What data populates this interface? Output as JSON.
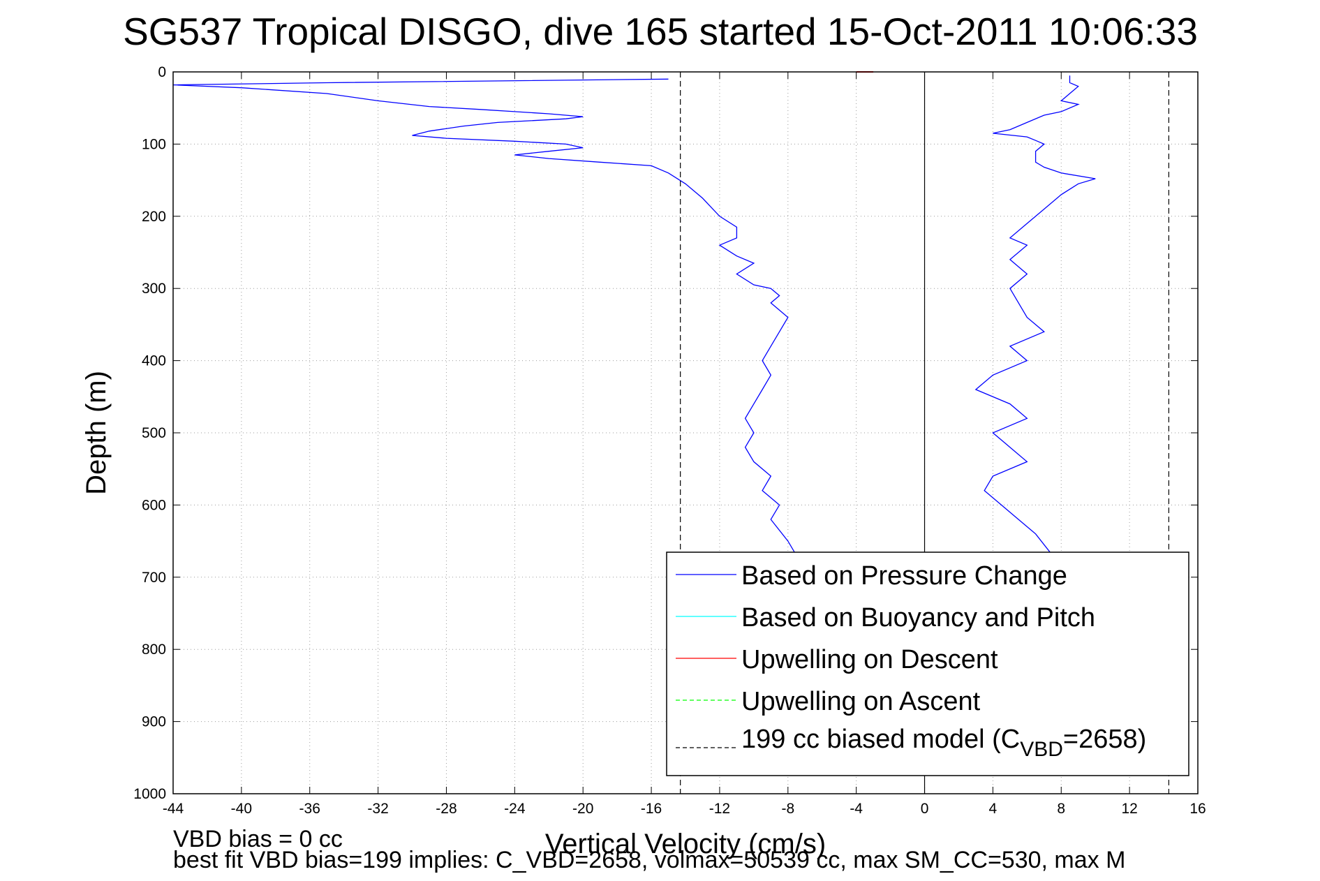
{
  "chart_data": {
    "type": "line",
    "title": "SG537 Tropical DISGO, dive 165 started 15-Oct-2011 10:06:33",
    "xlabel": "Vertical Velocity (cm/s)",
    "ylabel": "Depth (m)",
    "xlim": [
      -44,
      16
    ],
    "ylim": [
      0,
      1000
    ],
    "y_reversed": true,
    "grid": true,
    "xticks": [
      "-44",
      "-40",
      "-36",
      "-32",
      "-28",
      "-24",
      "-20",
      "-16",
      "-12",
      "-8",
      "-4",
      "0",
      "4",
      "8",
      "12",
      "16"
    ],
    "yticks": [
      "0",
      "100",
      "200",
      "300",
      "400",
      "500",
      "600",
      "700",
      "800",
      "900",
      "1000"
    ],
    "legend_position": "bottom-right",
    "legend": [
      {
        "label": "Based on Pressure Change",
        "color": "#0000ff",
        "style": "solid"
      },
      {
        "label": "Based on Buoyancy and Pitch",
        "color": "#00ffff",
        "style": "solid"
      },
      {
        "label": "Upwelling on Descent",
        "color": "#ff0000",
        "style": "solid"
      },
      {
        "label": "Upwelling on Ascent",
        "color": "#00ff00",
        "style": "dashed"
      },
      {
        "label_prefix": "199 cc biased model (C",
        "label_sub": "VBD",
        "label_suffix": "=2658)",
        "color": "#000000",
        "style": "dashed"
      }
    ],
    "series": [
      {
        "name": "Based on Pressure Change",
        "color": "#0000ff",
        "segments": [
          {
            "part": "descent",
            "x": [
              -15,
              -35,
              -44,
              -40,
              -35,
              -32,
              -29,
              -26,
              -24,
              -22,
              -20,
              -21,
              -25,
              -27,
              -29,
              -30,
              -28,
              -24,
              -21,
              -20,
              -22,
              -24,
              -22,
              -19,
              -16,
              -15,
              -14,
              -13,
              -12,
              -11,
              -11,
              -12,
              -11,
              -10,
              -11,
              -10,
              -9,
              -8.5,
              -9,
              -8,
              -8.5,
              -9,
              -9.5,
              -9,
              -9.5,
              -10,
              -10.5,
              -10,
              -10.5,
              -10,
              -9,
              -9.5,
              -8.5,
              -9,
              -8,
              -7.5
            ],
            "y": [
              10,
              15,
              18,
              22,
              30,
              40,
              48,
              52,
              55,
              58,
              62,
              65,
              70,
              75,
              82,
              88,
              92,
              96,
              100,
              105,
              110,
              115,
              120,
              125,
              130,
              140,
              155,
              175,
              200,
              215,
              230,
              240,
              255,
              265,
              280,
              295,
              300,
              310,
              320,
              340,
              360,
              380,
              400,
              420,
              440,
              460,
              480,
              500,
              520,
              540,
              560,
              580,
              600,
              620,
              650,
              670
            ]
          },
          {
            "part": "ascent",
            "x": [
              7.5,
              6.5,
              5.5,
              4.5,
              3.5,
              4,
              6,
              5,
              4,
              6,
              5,
              3,
              4,
              6,
              5,
              7,
              6,
              5,
              6,
              5,
              6,
              5,
              6,
              7,
              8,
              9,
              10,
              8,
              7,
              6.5,
              6.5,
              7,
              6.5,
              6,
              4,
              5,
              6,
              7,
              8,
              9,
              8,
              8.5,
              9,
              8.5,
              8.5,
              8.5
            ],
            "y": [
              670,
              640,
              620,
              600,
              580,
              560,
              540,
              520,
              500,
              480,
              460,
              440,
              420,
              400,
              380,
              360,
              340,
              300,
              280,
              260,
              240,
              230,
              210,
              190,
              170,
              155,
              148,
              140,
              132,
              125,
              110,
              100,
              95,
              90,
              85,
              80,
              70,
              60,
              55,
              45,
              40,
              30,
              20,
              15,
              10,
              5
            ]
          }
        ]
      },
      {
        "name": "Upwelling on Descent",
        "color": "#ff0000",
        "x": [
          -4,
          -3
        ],
        "y": [
          0,
          0
        ]
      },
      {
        "name": "199 cc biased model (C_VBD=2658)",
        "color": "#000000",
        "style": "dashed",
        "vertical_lines_x": [
          -14.3,
          14.3
        ]
      }
    ],
    "zero_line_x": 0
  },
  "notes": {
    "vbd_bias": "VBD bias = 0 cc",
    "best_fit": "best fit VBD bias=199 implies: C_VBD=2658, volmax=50539 cc, max SM_CC=530, max M"
  }
}
